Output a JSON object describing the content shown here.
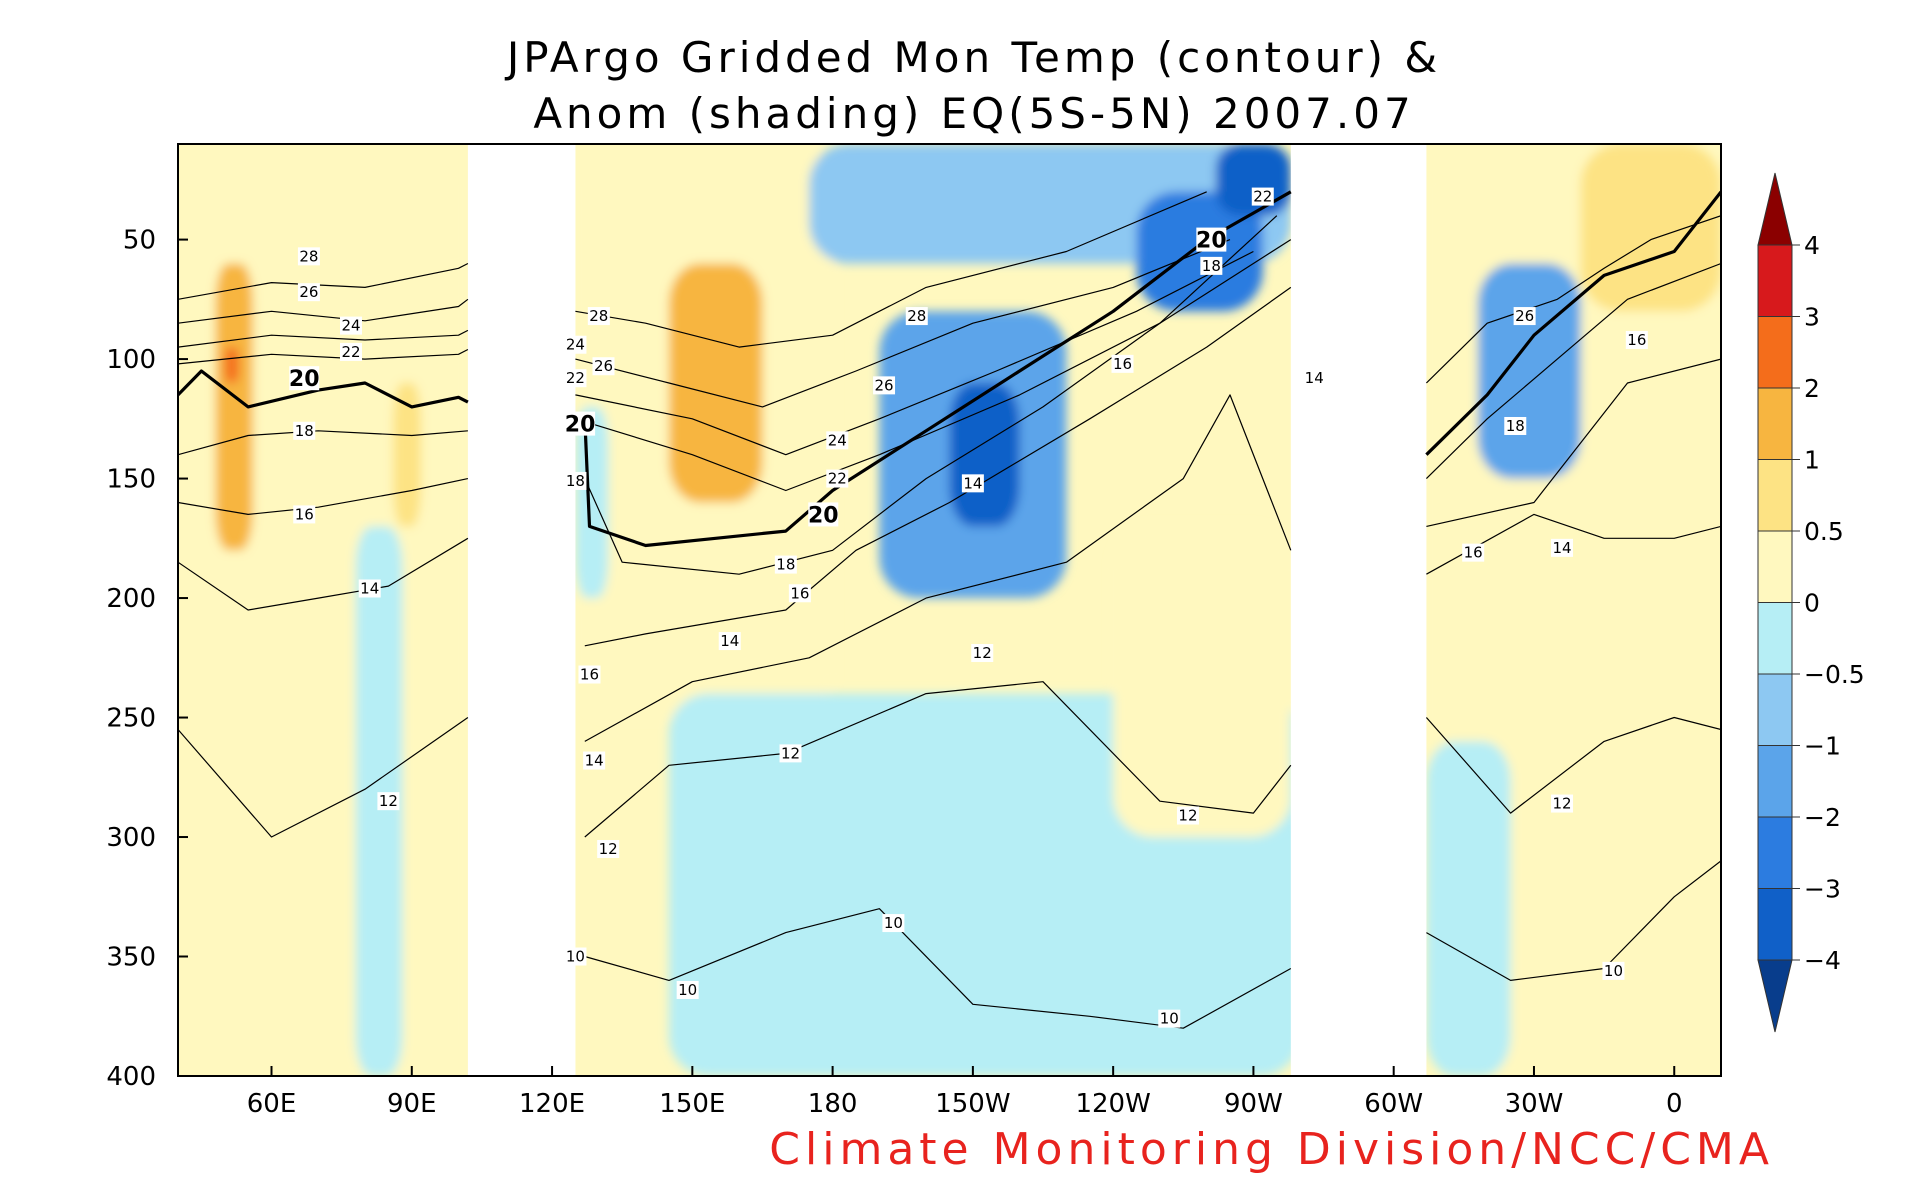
{
  "chart_data": {
    "type": "heatmap",
    "title": [
      "JPArgo Gridded Mon Temp (contour) &",
      "Anom (shading) EQ(5S-5N) 2007.07"
    ],
    "credit": "Climate Monitoring Division/NCC/CMA",
    "x_axis": {
      "range": [
        40,
        370
      ],
      "ticks": [
        {
          "value": 60,
          "label": "60E"
        },
        {
          "value": 90,
          "label": "90E"
        },
        {
          "value": 120,
          "label": "120E"
        },
        {
          "value": 150,
          "label": "150E"
        },
        {
          "value": 180,
          "label": "180"
        },
        {
          "value": 210,
          "label": "150W"
        },
        {
          "value": 240,
          "label": "120W"
        },
        {
          "value": 270,
          "label": "90W"
        },
        {
          "value": 300,
          "label": "60W"
        },
        {
          "value": 330,
          "label": "30W"
        },
        {
          "value": 360,
          "label": "0"
        }
      ]
    },
    "y_axis": {
      "range": [
        10,
        400
      ],
      "inverted": true,
      "ticks": [
        50,
        100,
        150,
        200,
        250,
        300,
        350,
        400
      ]
    },
    "land_gaps": [
      [
        102,
        125
      ],
      [
        278,
        307
      ]
    ],
    "colorbar": {
      "labels": [
        "4",
        "3",
        "2",
        "1",
        "0.5",
        "0",
        "-0.5",
        "-1",
        "-2",
        "-3",
        "-4"
      ],
      "colors": [
        "#8b0000",
        "#d7191c",
        "#f46d1b",
        "#f7b540",
        "#fde384",
        "#fff8bf",
        "#b6eef5",
        "#8dc8f2",
        "#5ba4ea",
        "#2c7ce0",
        "#1060c8",
        "#083d8c"
      ]
    },
    "anomaly_regions": [
      {
        "lon": [
          40,
          102
        ],
        "depth": [
          10,
          260
        ],
        "value": 0.3
      },
      {
        "lon": [
          40,
          102
        ],
        "depth": [
          260,
          400
        ],
        "value": 0.2
      },
      {
        "lon": [
          48,
          56
        ],
        "depth": [
          60,
          180
        ],
        "value": 1.2
      },
      {
        "lon": [
          50,
          53
        ],
        "depth": [
          95,
          110
        ],
        "value": 2.2
      },
      {
        "lon": [
          78,
          88
        ],
        "depth": [
          170,
          400
        ],
        "value": -0.3
      },
      {
        "lon": [
          86,
          92
        ],
        "depth": [
          110,
          170
        ],
        "value": 0.8
      },
      {
        "lon": [
          125,
          180
        ],
        "depth": [
          10,
          250
        ],
        "value": 0.3
      },
      {
        "lon": [
          145,
          165
        ],
        "depth": [
          60,
          160
        ],
        "value": 1.1
      },
      {
        "lon": [
          125,
          132
        ],
        "depth": [
          120,
          200
        ],
        "value": -0.3
      },
      {
        "lon": [
          145,
          280
        ],
        "depth": [
          240,
          400
        ],
        "value": -0.3
      },
      {
        "lon": [
          175,
          278
        ],
        "depth": [
          10,
          60
        ],
        "value": -0.8
      },
      {
        "lon": [
          190,
          230
        ],
        "depth": [
          80,
          200
        ],
        "value": -1.5
      },
      {
        "lon": [
          205,
          220
        ],
        "depth": [
          110,
          170
        ],
        "value": -3.0
      },
      {
        "lon": [
          245,
          272
        ],
        "depth": [
          30,
          80
        ],
        "value": -2.0
      },
      {
        "lon": [
          262,
          278
        ],
        "depth": [
          10,
          40
        ],
        "value": -3.0
      },
      {
        "lon": [
          240,
          278
        ],
        "depth": [
          170,
          300
        ],
        "value": 0.3
      },
      {
        "lon": [
          307,
          370
        ],
        "depth": [
          10,
          400
        ],
        "value": 0.3
      },
      {
        "lon": [
          340,
          370
        ],
        "depth": [
          10,
          80
        ],
        "value": 0.9
      },
      {
        "lon": [
          318,
          340
        ],
        "depth": [
          60,
          150
        ],
        "value": -1.2
      },
      {
        "lon": [
          307,
          325
        ],
        "depth": [
          260,
          400
        ],
        "value": -0.3
      }
    ],
    "contours": [
      {
        "value": 28,
        "points": [
          [
            40,
            75
          ],
          [
            60,
            68
          ],
          [
            80,
            70
          ],
          [
            100,
            62
          ],
          [
            102,
            60
          ]
        ]
      },
      {
        "value": 26,
        "points": [
          [
            40,
            85
          ],
          [
            60,
            80
          ],
          [
            80,
            84
          ],
          [
            100,
            78
          ],
          [
            102,
            75
          ]
        ]
      },
      {
        "value": 24,
        "points": [
          [
            40,
            95
          ],
          [
            60,
            90
          ],
          [
            80,
            92
          ],
          [
            100,
            90
          ],
          [
            102,
            88
          ]
        ]
      },
      {
        "value": 22,
        "points": [
          [
            40,
            102
          ],
          [
            60,
            98
          ],
          [
            80,
            100
          ],
          [
            100,
            98
          ],
          [
            102,
            96
          ]
        ]
      },
      {
        "value": 20,
        "bold": true,
        "points": [
          [
            40,
            115
          ],
          [
            45,
            105
          ],
          [
            55,
            120
          ],
          [
            70,
            113
          ],
          [
            80,
            110
          ],
          [
            90,
            120
          ],
          [
            100,
            116
          ],
          [
            102,
            118
          ]
        ]
      },
      {
        "value": 18,
        "points": [
          [
            40,
            140
          ],
          [
            55,
            132
          ],
          [
            70,
            130
          ],
          [
            90,
            132
          ],
          [
            102,
            130
          ]
        ]
      },
      {
        "value": 16,
        "points": [
          [
            40,
            160
          ],
          [
            55,
            165
          ],
          [
            70,
            162
          ],
          [
            90,
            155
          ],
          [
            102,
            150
          ]
        ]
      },
      {
        "value": 14,
        "points": [
          [
            40,
            185
          ],
          [
            55,
            205
          ],
          [
            70,
            200
          ],
          [
            85,
            195
          ],
          [
            102,
            175
          ]
        ]
      },
      {
        "value": 12,
        "points": [
          [
            40,
            255
          ],
          [
            60,
            300
          ],
          [
            80,
            280
          ],
          [
            102,
            250
          ]
        ]
      },
      {
        "value": 28,
        "points": [
          [
            125,
            80
          ],
          [
            140,
            85
          ],
          [
            160,
            95
          ],
          [
            180,
            90
          ],
          [
            200,
            70
          ],
          [
            230,
            55
          ],
          [
            260,
            30
          ]
        ]
      },
      {
        "value": 26,
        "points": [
          [
            125,
            100
          ],
          [
            145,
            110
          ],
          [
            165,
            120
          ],
          [
            185,
            105
          ],
          [
            210,
            85
          ],
          [
            240,
            70
          ],
          [
            265,
            50
          ]
        ]
      },
      {
        "value": 24,
        "points": [
          [
            125,
            115
          ],
          [
            150,
            125
          ],
          [
            170,
            140
          ],
          [
            190,
            125
          ],
          [
            215,
            105
          ],
          [
            245,
            80
          ],
          [
            270,
            55
          ]
        ]
      },
      {
        "value": 22,
        "points": [
          [
            125,
            125
          ],
          [
            150,
            140
          ],
          [
            170,
            155
          ],
          [
            190,
            140
          ],
          [
            220,
            115
          ],
          [
            250,
            85
          ],
          [
            275,
            40
          ]
        ]
      },
      {
        "value": 20,
        "bold": true,
        "points": [
          [
            127,
            125
          ],
          [
            128,
            170
          ],
          [
            140,
            178
          ],
          [
            155,
            175
          ],
          [
            170,
            172
          ],
          [
            180,
            155
          ],
          [
            200,
            130
          ],
          [
            220,
            105
          ],
          [
            240,
            80
          ],
          [
            260,
            50
          ],
          [
            278,
            30
          ]
        ]
      },
      {
        "value": 18,
        "points": [
          [
            127,
            150
          ],
          [
            135,
            185
          ],
          [
            160,
            190
          ],
          [
            180,
            180
          ],
          [
            200,
            150
          ],
          [
            225,
            120
          ],
          [
            250,
            85
          ],
          [
            278,
            50
          ]
        ]
      },
      {
        "value": 16,
        "points": [
          [
            127,
            220
          ],
          [
            140,
            215
          ],
          [
            170,
            205
          ],
          [
            185,
            180
          ],
          [
            205,
            160
          ],
          [
            235,
            125
          ],
          [
            260,
            95
          ],
          [
            278,
            70
          ]
        ]
      },
      {
        "value": 14,
        "points": [
          [
            127,
            260
          ],
          [
            150,
            235
          ],
          [
            175,
            225
          ],
          [
            200,
            200
          ],
          [
            230,
            185
          ],
          [
            255,
            150
          ],
          [
            265,
            115
          ],
          [
            278,
            180
          ]
        ]
      },
      {
        "value": 12,
        "points": [
          [
            127,
            300
          ],
          [
            145,
            270
          ],
          [
            170,
            265
          ],
          [
            200,
            240
          ],
          [
            225,
            235
          ],
          [
            250,
            285
          ],
          [
            270,
            290
          ],
          [
            278,
            270
          ]
        ]
      },
      {
        "value": 10,
        "points": [
          [
            127,
            350
          ],
          [
            145,
            360
          ],
          [
            170,
            340
          ],
          [
            190,
            330
          ],
          [
            210,
            370
          ],
          [
            235,
            375
          ],
          [
            255,
            380
          ],
          [
            278,
            355
          ]
        ]
      },
      {
        "value": 26,
        "points": [
          [
            307,
            110
          ],
          [
            320,
            85
          ],
          [
            335,
            75
          ],
          [
            345,
            62
          ],
          [
            355,
            50
          ],
          [
            370,
            40
          ]
        ]
      },
      {
        "value": 20,
        "bold": true,
        "points": [
          [
            307,
            140
          ],
          [
            320,
            115
          ],
          [
            330,
            90
          ],
          [
            345,
            65
          ],
          [
            360,
            55
          ],
          [
            370,
            30
          ]
        ]
      },
      {
        "value": 18,
        "points": [
          [
            307,
            150
          ],
          [
            320,
            125
          ],
          [
            335,
            100
          ],
          [
            350,
            75
          ],
          [
            370,
            60
          ]
        ]
      },
      {
        "value": 16,
        "points": [
          [
            307,
            170
          ],
          [
            330,
            160
          ],
          [
            350,
            110
          ],
          [
            370,
            100
          ]
        ]
      },
      {
        "value": 14,
        "points": [
          [
            307,
            190
          ],
          [
            330,
            165
          ],
          [
            345,
            175
          ],
          [
            360,
            175
          ],
          [
            370,
            170
          ]
        ]
      },
      {
        "value": 12,
        "points": [
          [
            307,
            250
          ],
          [
            325,
            290
          ],
          [
            345,
            260
          ],
          [
            360,
            250
          ],
          [
            370,
            255
          ]
        ]
      },
      {
        "value": 10,
        "points": [
          [
            307,
            340
          ],
          [
            325,
            360
          ],
          [
            345,
            355
          ],
          [
            360,
            325
          ],
          [
            370,
            310
          ]
        ]
      }
    ],
    "contour_labels": [
      {
        "text": "28",
        "lon": 68,
        "depth": 57
      },
      {
        "text": "26",
        "lon": 68,
        "depth": 72
      },
      {
        "text": "24",
        "lon": 77,
        "depth": 86
      },
      {
        "text": "22",
        "lon": 77,
        "depth": 97
      },
      {
        "text": "20",
        "lon": 67,
        "depth": 108,
        "bold": true
      },
      {
        "text": "18",
        "lon": 67,
        "depth": 130
      },
      {
        "text": "16",
        "lon": 67,
        "depth": 165
      },
      {
        "text": "14",
        "lon": 81,
        "depth": 196
      },
      {
        "text": "12",
        "lon": 85,
        "depth": 285
      },
      {
        "text": "28",
        "lon": 130,
        "depth": 82
      },
      {
        "text": "24",
        "lon": 125,
        "depth": 94
      },
      {
        "text": "22",
        "lon": 125,
        "depth": 108
      },
      {
        "text": "26",
        "lon": 131,
        "depth": 103
      },
      {
        "text": "20",
        "lon": 126,
        "depth": 127,
        "bold": true
      },
      {
        "text": "18",
        "lon": 125,
        "depth": 151
      },
      {
        "text": "28",
        "lon": 198,
        "depth": 82
      },
      {
        "text": "26",
        "lon": 191,
        "depth": 111
      },
      {
        "text": "24",
        "lon": 181,
        "depth": 134
      },
      {
        "text": "22",
        "lon": 181,
        "depth": 150
      },
      {
        "text": "20",
        "lon": 178,
        "depth": 165,
        "bold": true
      },
      {
        "text": "18",
        "lon": 170,
        "depth": 186
      },
      {
        "text": "16",
        "lon": 173,
        "depth": 198
      },
      {
        "text": "14",
        "lon": 158,
        "depth": 218
      },
      {
        "text": "16",
        "lon": 128,
        "depth": 232
      },
      {
        "text": "14",
        "lon": 129,
        "depth": 268
      },
      {
        "text": "12",
        "lon": 132,
        "depth": 305
      },
      {
        "text": "12",
        "lon": 171,
        "depth": 265
      },
      {
        "text": "12",
        "lon": 212,
        "depth": 223
      },
      {
        "text": "10",
        "lon": 125,
        "depth": 350
      },
      {
        "text": "10",
        "lon": 149,
        "depth": 364
      },
      {
        "text": "10",
        "lon": 193,
        "depth": 336
      },
      {
        "text": "10",
        "lon": 252,
        "depth": 376
      },
      {
        "text": "14",
        "lon": 210,
        "depth": 152
      },
      {
        "text": "16",
        "lon": 242,
        "depth": 102
      },
      {
        "text": "18",
        "lon": 261,
        "depth": 61
      },
      {
        "text": "20",
        "lon": 261,
        "depth": 50,
        "bold": true
      },
      {
        "text": "22",
        "lon": 272,
        "depth": 32
      },
      {
        "text": "14",
        "lon": 283,
        "depth": 108
      },
      {
        "text": "12",
        "lon": 256,
        "depth": 291
      },
      {
        "text": "26",
        "lon": 328,
        "depth": 82
      },
      {
        "text": "18",
        "lon": 326,
        "depth": 128
      },
      {
        "text": "16",
        "lon": 352,
        "depth": 92
      },
      {
        "text": "16",
        "lon": 317,
        "depth": 181
      },
      {
        "text": "14",
        "lon": 336,
        "depth": 179
      },
      {
        "text": "12",
        "lon": 336,
        "depth": 286
      },
      {
        "text": "10",
        "lon": 347,
        "depth": 356
      }
    ]
  }
}
